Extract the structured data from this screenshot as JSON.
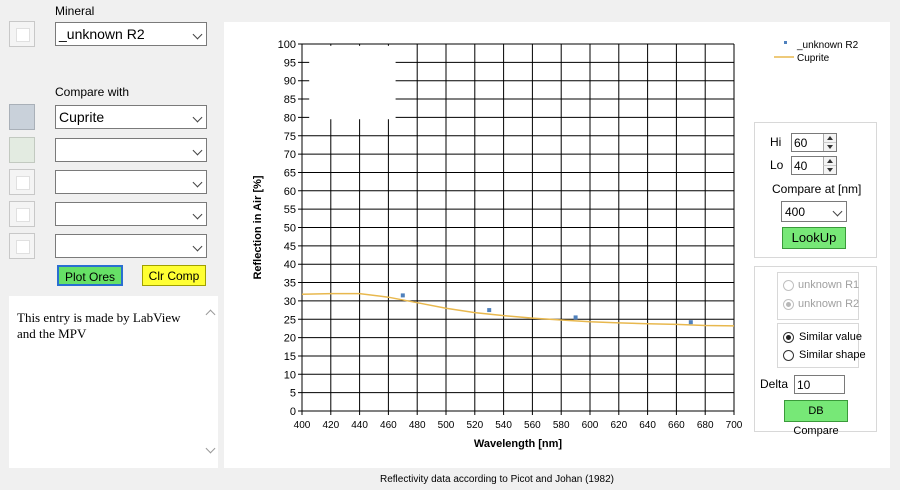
{
  "left": {
    "mineral_label": "Mineral",
    "mineral_value": "_unknown R2",
    "compare_label": "Compare with",
    "compare_values": [
      "Cuprite",
      "",
      "",
      "",
      ""
    ],
    "plot_ores_label": "Plot Ores",
    "clr_comp_label": "Clr Comp",
    "note_text": "This entry is made by LabView and the MPV"
  },
  "controls": {
    "hi_label": "Hi",
    "hi_value": "60",
    "lo_label": "Lo",
    "lo_value": "40",
    "compare_at_label": "Compare at [nm]",
    "compare_at_value": "400",
    "lookup_label": "LookUp",
    "radio_r1": "unknown R1",
    "radio_r2": "unknown R2",
    "similar_value": "Similar value",
    "similar_shape": "Similar shape",
    "delta_label": "Delta",
    "delta_value": "10",
    "db_compare_label": "DB Compare"
  },
  "footer": "Reflectivity data according to Picot and Johan (1982)",
  "colors": {
    "series_points": "#4f81bd",
    "series_line": "#e8b84e",
    "plot_ores_bg": "#66e066",
    "clr_comp_bg": "#ffff33",
    "lookup_bg": "#77e877",
    "db_compare_bg": "#77e877"
  },
  "chart_data": {
    "type": "line",
    "xlabel": "Wavelength [nm]",
    "ylabel": "Reflection in Air [%]",
    "xlim": [
      400,
      700
    ],
    "ylim": [
      0,
      100
    ],
    "x_ticks": [
      400,
      420,
      440,
      460,
      480,
      500,
      520,
      540,
      560,
      580,
      600,
      620,
      640,
      660,
      680,
      700
    ],
    "y_ticks": [
      0,
      5,
      10,
      15,
      20,
      25,
      30,
      35,
      40,
      45,
      50,
      55,
      60,
      65,
      70,
      75,
      80,
      85,
      90,
      95,
      100
    ],
    "grid": true,
    "legend_position": "top-right",
    "series": [
      {
        "name": "_unknown R2",
        "kind": "scatter",
        "x": [
          470,
          530,
          590,
          670
        ],
        "y": [
          31.5,
          27.5,
          25.5,
          24.2
        ]
      },
      {
        "name": "Cuprite",
        "kind": "line",
        "x": [
          400,
          420,
          440,
          460,
          480,
          500,
          520,
          540,
          560,
          580,
          600,
          620,
          640,
          660,
          680,
          700
        ],
        "y": [
          31.8,
          32.0,
          32.0,
          31.0,
          29.5,
          28.0,
          26.8,
          26.0,
          25.3,
          24.8,
          24.3,
          24.0,
          23.8,
          23.6,
          23.3,
          23.2
        ]
      }
    ]
  }
}
